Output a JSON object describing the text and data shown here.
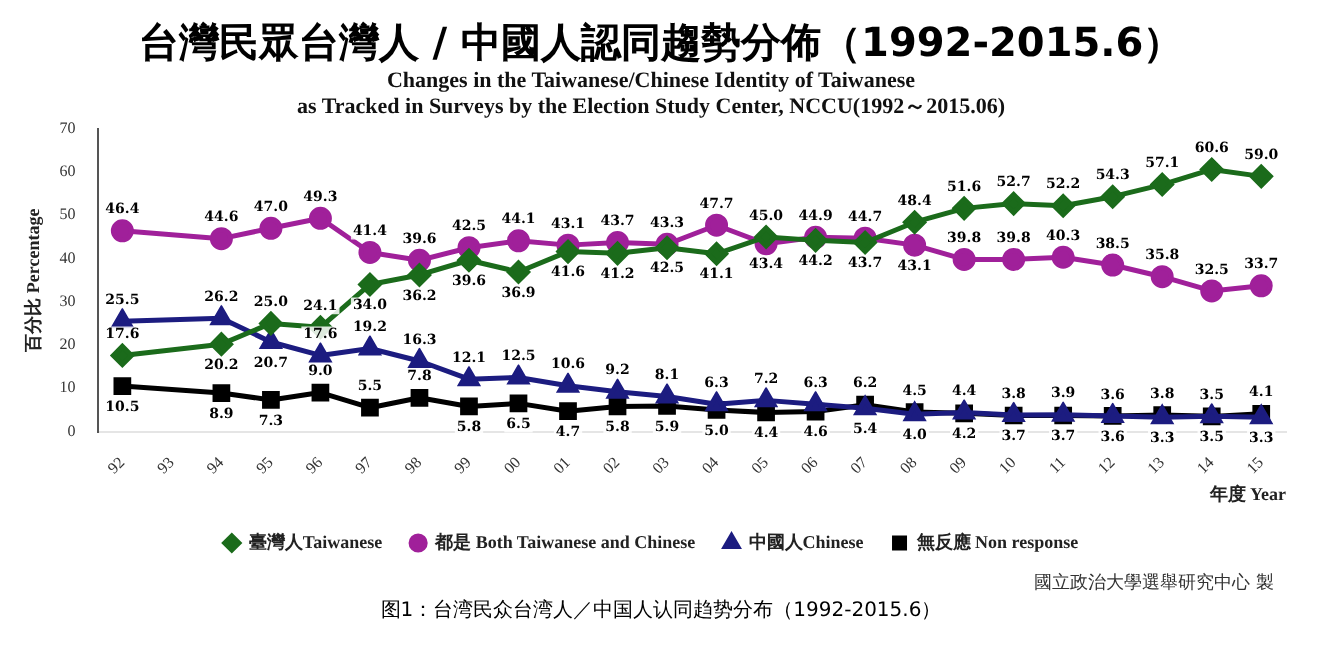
{
  "chart_data": {
    "type": "line",
    "title": "台灣民眾台灣人 / 中國人認同趨勢分佈（1992-2015.6）",
    "subtitle": "Changes in the Taiwanese/Chinese Identity of Taiwanese\nas Tracked in Surveys by the Election Study Center, NCCU(1992～2015.06)",
    "xlabel": "年度 Year",
    "ylabel": "百分比 Percentage",
    "annotations": [
      "國立政治大學選舉研究中心 製",
      "图1：台湾民众台湾人／中国人认同趋势分布（1992-2015.6）"
    ],
    "categories": [
      "92",
      "93",
      "94",
      "95",
      "96",
      "97",
      "98",
      "99",
      "00",
      "01",
      "02",
      "03",
      "04",
      "05",
      "06",
      "07",
      "08",
      "09",
      "10",
      "11",
      "12",
      "13",
      "14",
      "15"
    ],
    "series": [
      {
        "name": "臺灣人Taiwanese",
        "color": "#1b6b1b",
        "marker": "diamond",
        "values": [
          17.6,
          null,
          20.2,
          25.0,
          24.1,
          34.0,
          36.2,
          39.6,
          36.9,
          41.6,
          41.2,
          42.5,
          41.1,
          45.0,
          44.2,
          43.7,
          48.4,
          51.6,
          52.7,
          52.2,
          54.3,
          57.1,
          60.6,
          59.0
        ],
        "value_labels": [
          "17.6",
          null,
          "20.2",
          "25.0",
          "24.1",
          "34.0",
          "36.2",
          "39.6",
          "36.9",
          "41.6",
          "41.2",
          "42.5",
          "41.1",
          "45.0",
          "44.2",
          "43.7",
          "48.4",
          "51.6",
          "52.7",
          "52.2",
          "54.3",
          "57.1",
          "60.6",
          "59.0"
        ]
      },
      {
        "name": "都是 Both Taiwanese and Chinese",
        "color": "#a0209a",
        "marker": "circle",
        "values": [
          46.4,
          null,
          44.6,
          47.0,
          49.3,
          41.4,
          39.6,
          42.5,
          44.1,
          43.1,
          43.7,
          43.3,
          47.7,
          43.4,
          44.9,
          44.7,
          43.1,
          39.8,
          39.8,
          40.3,
          38.5,
          35.8,
          32.5,
          33.7
        ],
        "value_labels": [
          "46.4",
          null,
          "44.6",
          "47.0",
          "49.3",
          "41.4",
          "39.6",
          "42.5",
          "44.1",
          "43.1",
          "43.7",
          "43.3",
          "47.7",
          "43.4",
          "44.9",
          "44.7",
          "43.1",
          "39.8",
          "39.8",
          "40.3",
          "38.5",
          "35.8",
          "32.5",
          "33.7"
        ]
      },
      {
        "name": "中國人Chinese",
        "color": "#1c1c80",
        "marker": "triangle",
        "values": [
          25.5,
          null,
          26.2,
          20.7,
          17.6,
          19.2,
          16.3,
          12.1,
          12.5,
          10.6,
          9.2,
          8.1,
          6.3,
          7.2,
          6.3,
          5.4,
          4.0,
          4.4,
          3.8,
          3.9,
          3.6,
          3.3,
          3.5,
          3.3
        ],
        "value_labels": [
          "25.5",
          null,
          "26.2",
          "20.7",
          "17.6",
          "19.2",
          "16.3",
          "12.1",
          "12.5",
          "10.6",
          "9.2",
          "8.1",
          "6.3",
          "7.2",
          "6.3",
          "5.4",
          "4.0",
          "4.4",
          "3.8",
          "3.9",
          "3.6",
          "3.3",
          "3.5",
          "3.3"
        ]
      },
      {
        "name": "無反應 Non response",
        "color": "#000000",
        "marker": "square",
        "values": [
          10.5,
          null,
          8.9,
          7.3,
          9.0,
          5.5,
          7.8,
          5.8,
          6.5,
          4.7,
          5.8,
          5.9,
          5.0,
          4.4,
          4.6,
          6.2,
          4.5,
          4.2,
          3.7,
          3.7,
          3.6,
          3.8,
          3.5,
          4.1
        ],
        "value_labels": [
          "10.5",
          null,
          "8.9",
          "7.3",
          "9.0",
          "5.5",
          "7.8",
          "5.8",
          "6.5",
          "4.7",
          "5.8",
          "5.9",
          "5.0",
          "4.4",
          "4.6",
          "6.2",
          "4.5",
          "4.2",
          "3.7",
          "3.7",
          "3.6",
          "3.8",
          "3.5",
          "4.1"
        ]
      }
    ],
    "ylim": [
      0,
      70
    ],
    "yticks": [
      0,
      10,
      20,
      30,
      40,
      50,
      60,
      70
    ],
    "grid": false,
    "legend": "bottom",
    "line_style": "solid"
  }
}
